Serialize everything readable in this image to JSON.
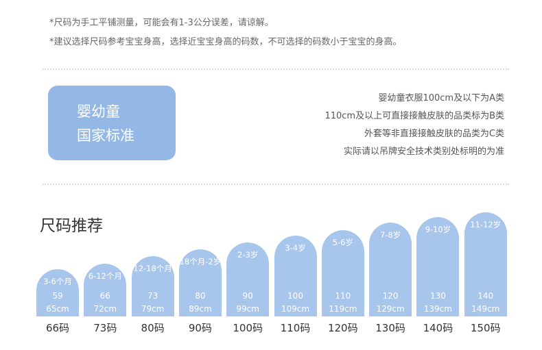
{
  "notes": [
    "*尺码为手工平铺测量，可能会有1-3公分误差，请谅解。",
    "*建议选择尺码参考宝宝身高，选择近宝宝身高的码数，不可选择的码数小于宝宝的身高。"
  ],
  "badge": [
    "婴幼童",
    "国家标准"
  ],
  "rules": [
    "婴幼童衣服100cm及以下为A类",
    "110cm及以上可直接接触皮肤的品类标为B类",
    "外套等非直接接触皮肤的品类为C类",
    "实际请以吊牌安全技术类别处标明的为准"
  ],
  "section_title": "尺码推荐",
  "sizes": [
    {
      "age": "3-6个月",
      "from": "59",
      "to": "65cm",
      "size": "66码"
    },
    {
      "age": "6-12个月",
      "from": "66",
      "to": "72cm",
      "size": "73码"
    },
    {
      "age": "12-18个月",
      "from": "73",
      "to": "79cm",
      "size": "80码"
    },
    {
      "age": "18个月-2岁",
      "from": "80",
      "to": "89cm",
      "size": "90码"
    },
    {
      "age": "2-3岁",
      "from": "90",
      "to": "99cm",
      "size": "100码"
    },
    {
      "age": "3-4岁",
      "from": "100",
      "to": "109cm",
      "size": "110码"
    },
    {
      "age": "5-6岁",
      "from": "110",
      "to": "119cm",
      "size": "120码"
    },
    {
      "age": "7-8岁",
      "from": "120",
      "to": "129cm",
      "size": "130码"
    },
    {
      "age": "9-10岁",
      "from": "130",
      "to": "139cm",
      "size": "140码"
    },
    {
      "age": "11-12岁",
      "from": "140",
      "to": "149cm",
      "size": "150码"
    }
  ]
}
